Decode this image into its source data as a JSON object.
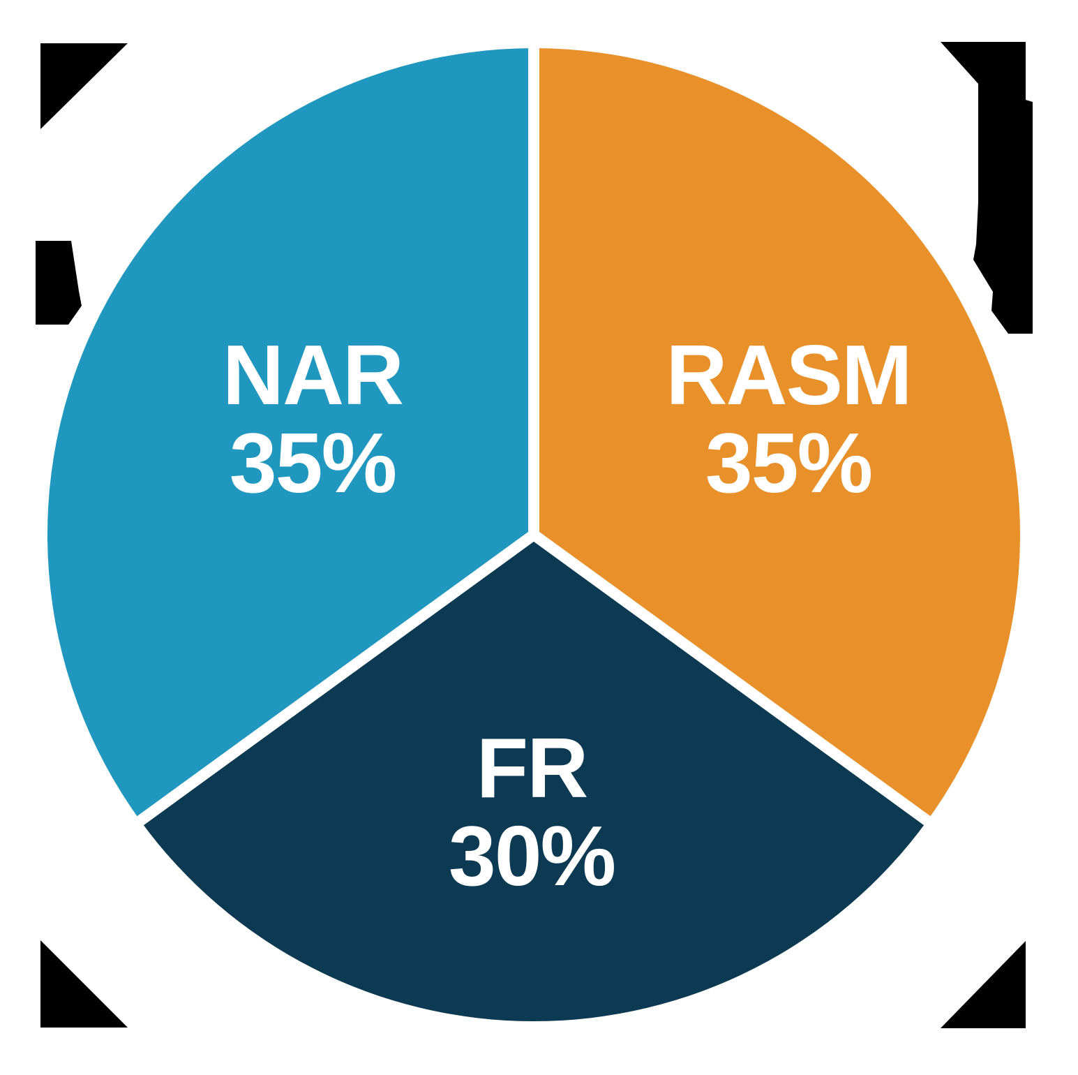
{
  "chart_data": {
    "type": "pie",
    "title": "",
    "direction": "clockwise",
    "start_angle_deg_from_top": 0,
    "legend": "none",
    "grid": false,
    "slices": [
      {
        "label": "RASM",
        "value": 35,
        "pct_label": "35%",
        "color": "#E8912B",
        "position": "right"
      },
      {
        "label": "FR",
        "value": 30,
        "pct_label": "30%",
        "color": "#0C3A52",
        "position": "bottom"
      },
      {
        "label": "NAR",
        "value": 35,
        "pct_label": "35%",
        "color": "#2097BE",
        "position": "left"
      }
    ],
    "label_color": "#FFFFFF",
    "divider_color": "#FFFFFF",
    "background_color": "#FFFFFF",
    "corner_mark_color": "#000000"
  }
}
